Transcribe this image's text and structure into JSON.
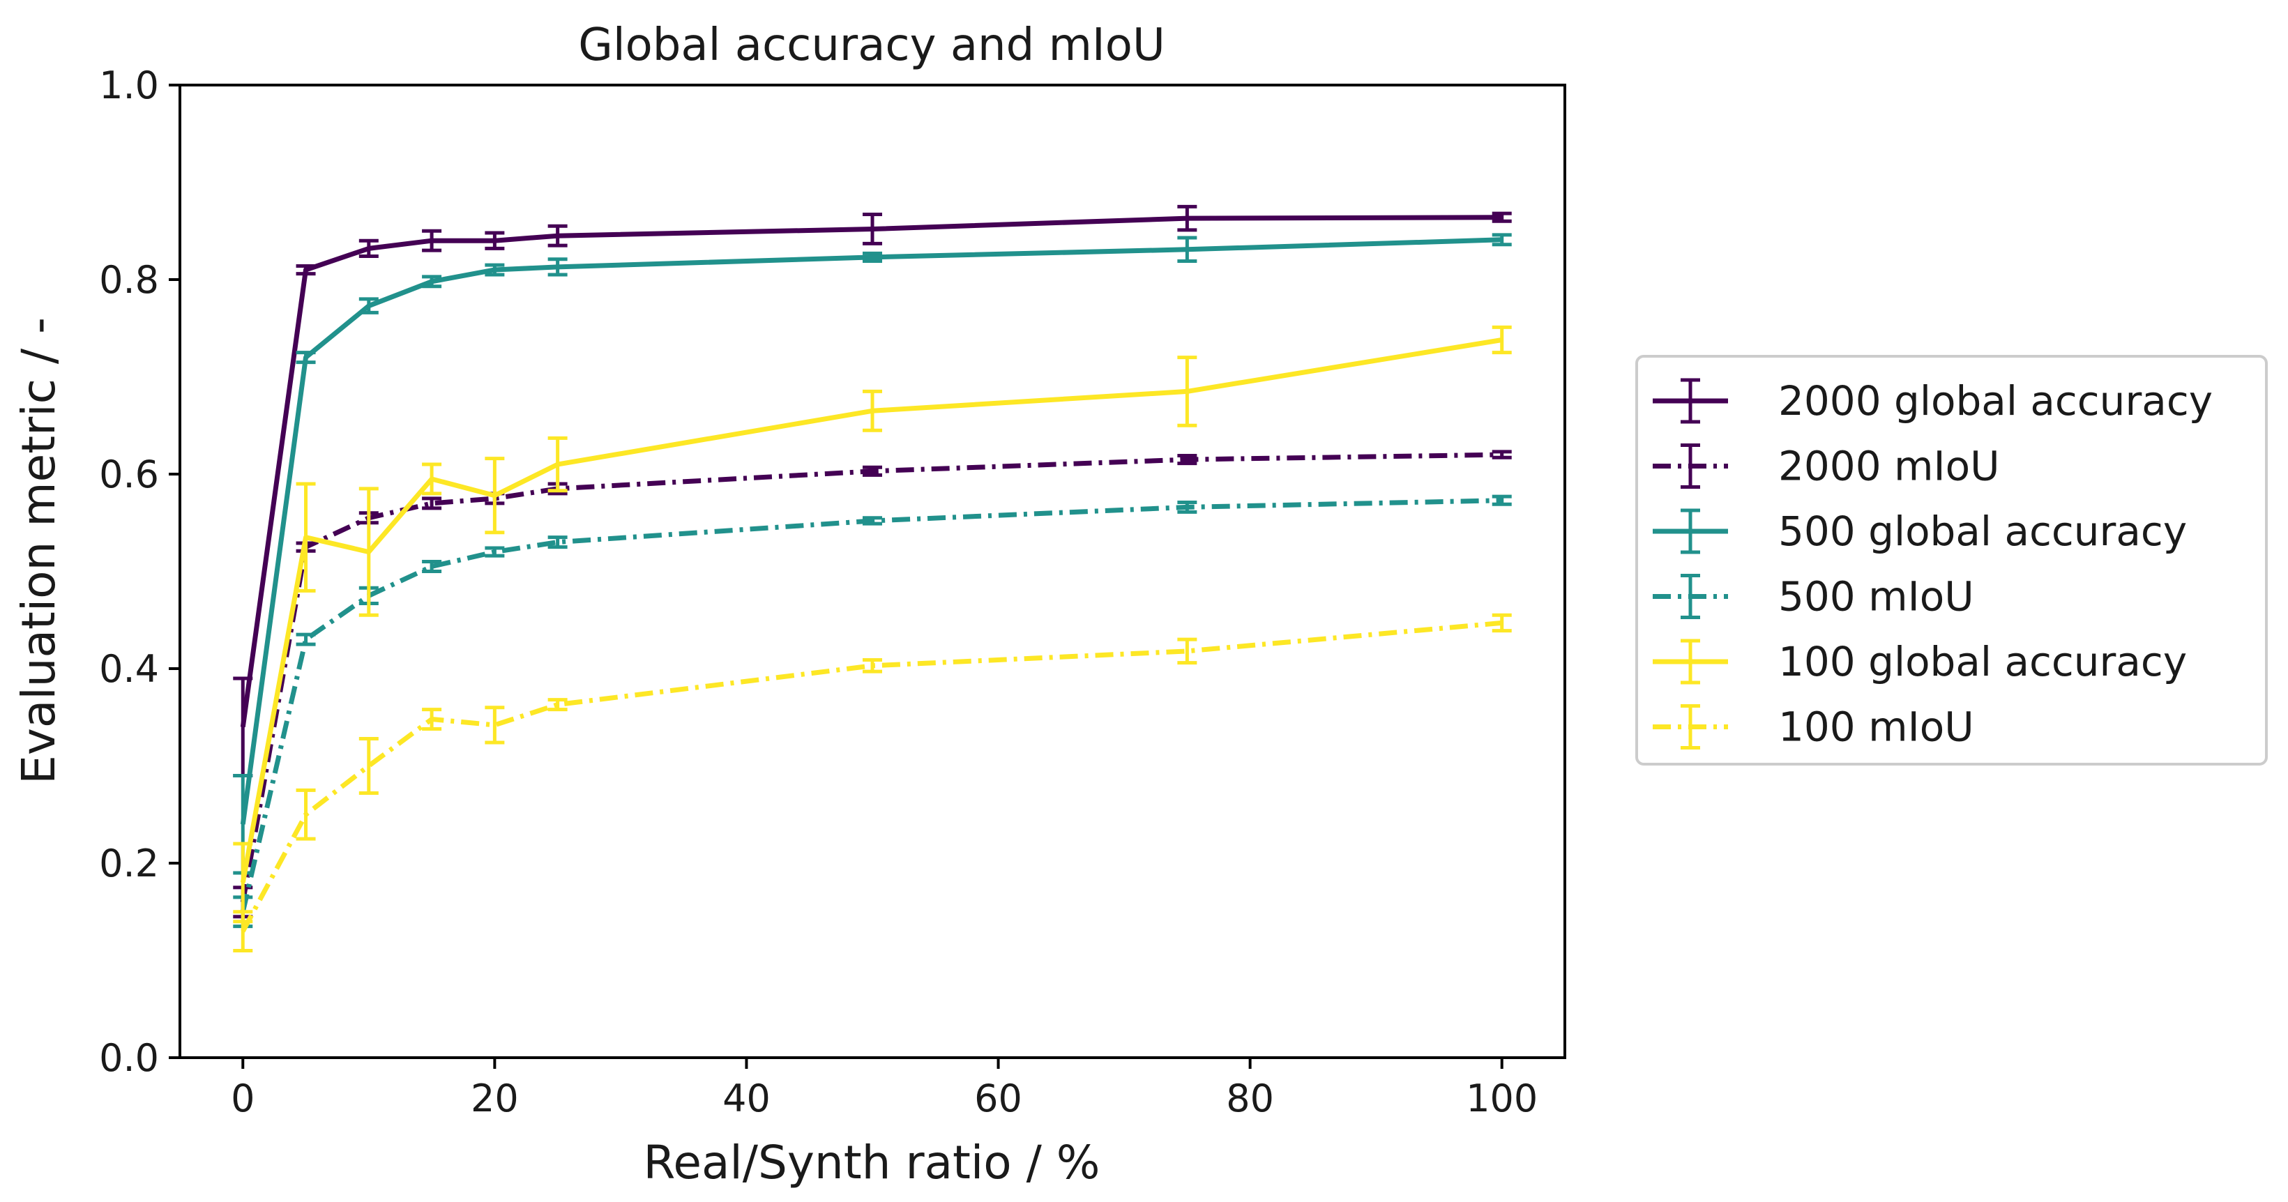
{
  "chart_data": {
    "type": "line",
    "title": "Global accuracy and mIoU",
    "xlabel": "Real/Synth ratio / %",
    "ylabel": "Evaluation metric / -",
    "xlim": [
      -5,
      105
    ],
    "ylim": [
      0.0,
      1.0
    ],
    "xticks": [
      0,
      20,
      40,
      60,
      80,
      100
    ],
    "yticks": [
      "0.0",
      "0.2",
      "0.4",
      "0.6",
      "0.8",
      "1.0"
    ],
    "legend_position": "right, outside plot",
    "x": [
      0,
      5,
      10,
      15,
      20,
      25,
      50,
      75,
      100
    ],
    "series": [
      {
        "name": "2000 global accuracy",
        "color": "#440154",
        "dash": "solid",
        "values": [
          0.34,
          0.81,
          0.832,
          0.84,
          0.84,
          0.845,
          0.852,
          0.863,
          0.864
        ],
        "errors": [
          0.05,
          0.004,
          0.008,
          0.01,
          0.008,
          0.01,
          0.015,
          0.012,
          0.004
        ]
      },
      {
        "name": "2000 mIoU",
        "color": "#440154",
        "dash": "dashdot",
        "values": [
          0.16,
          0.525,
          0.555,
          0.57,
          0.575,
          0.585,
          0.603,
          0.615,
          0.62
        ],
        "errors": [
          0.015,
          0.004,
          0.005,
          0.005,
          0.005,
          0.005,
          0.004,
          0.004,
          0.003
        ]
      },
      {
        "name": "500 global accuracy",
        "color": "#21918c",
        "dash": "solid",
        "values": [
          0.24,
          0.72,
          0.773,
          0.798,
          0.81,
          0.813,
          0.823,
          0.831,
          0.841
        ],
        "errors": [
          0.05,
          0.005,
          0.007,
          0.005,
          0.005,
          0.008,
          0.004,
          0.012,
          0.005
        ]
      },
      {
        "name": "500 mIoU",
        "color": "#21918c",
        "dash": "dashdot",
        "values": [
          0.15,
          0.43,
          0.475,
          0.505,
          0.52,
          0.53,
          0.552,
          0.566,
          0.573
        ],
        "errors": [
          0.015,
          0.005,
          0.008,
          0.005,
          0.004,
          0.005,
          0.003,
          0.005,
          0.004
        ]
      },
      {
        "name": "100 global accuracy",
        "color": "#fde725",
        "dash": "solid",
        "values": [
          0.18,
          0.535,
          0.52,
          0.595,
          0.578,
          0.61,
          0.665,
          0.685,
          0.738
        ],
        "errors": [
          0.04,
          0.055,
          0.065,
          0.015,
          0.038,
          0.027,
          0.02,
          0.035,
          0.013
        ]
      },
      {
        "name": "100 mIoU",
        "color": "#fde725",
        "dash": "dashdot",
        "values": [
          0.13,
          0.25,
          0.3,
          0.348,
          0.342,
          0.363,
          0.403,
          0.418,
          0.447
        ],
        "errors": [
          0.02,
          0.025,
          0.028,
          0.01,
          0.018,
          0.005,
          0.006,
          0.012,
          0.008
        ]
      }
    ]
  }
}
